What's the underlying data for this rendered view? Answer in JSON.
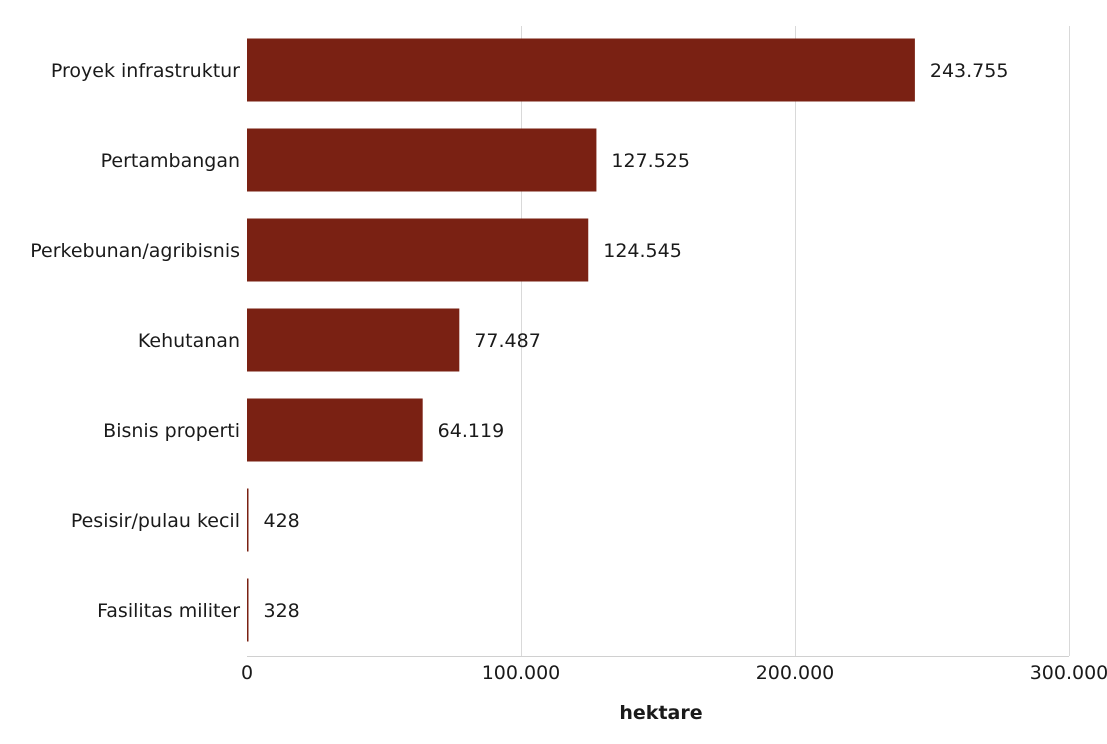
{
  "chart_data": {
    "type": "bar",
    "orientation": "horizontal",
    "categories": [
      "Proyek infrastruktur",
      "Pertambangan",
      "Perkebunan/agribisnis",
      "Kehutanan",
      "Bisnis properti",
      "Pesisir/pulau kecil",
      "Fasilitas militer"
    ],
    "values": [
      243755,
      127525,
      124545,
      77487,
      64119,
      428,
      328
    ],
    "value_labels": [
      "243.755",
      "127.525",
      "124.545",
      "77.487",
      "64.119",
      "428",
      "328"
    ],
    "xlabel": "hektare",
    "ylabel": "",
    "xlim": [
      0,
      300000
    ],
    "x_ticks": [
      0,
      100000,
      200000,
      300000
    ],
    "x_tick_labels": [
      "0",
      "100.000",
      "200.000",
      "300.000"
    ],
    "grid": true,
    "bar_color": "#7a2113"
  }
}
